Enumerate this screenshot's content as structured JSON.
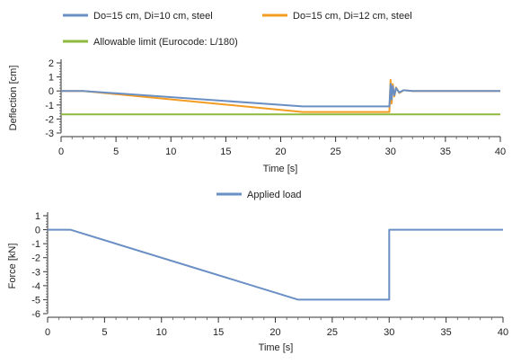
{
  "chart_data": [
    {
      "type": "line",
      "xlabel": "Time [s]",
      "ylabel": "Deflection [cm]",
      "xlim": [
        0,
        40
      ],
      "ylim": [
        -3,
        2
      ],
      "xticks": [
        "0",
        "5",
        "10",
        "15",
        "20",
        "25",
        "30",
        "35",
        "40"
      ],
      "yticks": [
        "2",
        "1",
        "0",
        "-1",
        "-2",
        "-3"
      ],
      "grid": false,
      "legend_position": "top",
      "series": [
        {
          "name": "Do=15 cm, Di=10 cm, steel",
          "color": "#6a8fc4",
          "x": [
            0,
            2,
            22,
            29.9,
            30,
            30.1,
            30.2,
            30.35,
            30.5,
            30.8,
            31.2,
            32,
            40
          ],
          "y": [
            0,
            0,
            -1.1,
            -1.1,
            0.5,
            -0.6,
            0.35,
            -0.3,
            0.2,
            -0.1,
            0.05,
            0,
            0
          ]
        },
        {
          "name": "Do=15 cm, Di=12 cm, steel",
          "color": "#f39c22",
          "x": [
            0,
            2,
            22,
            29.9,
            30,
            30.1,
            30.2,
            30.35,
            30.5,
            30.8,
            31.2,
            32,
            40
          ],
          "y": [
            0,
            0,
            -1.5,
            -1.5,
            0.8,
            -0.9,
            0.5,
            -0.4,
            0.25,
            -0.15,
            0.05,
            0,
            0
          ]
        },
        {
          "name": "Allowable limit (Eurocode: L/180)",
          "color": "#8db93c",
          "x": [
            0,
            40
          ],
          "y": [
            -1.67,
            -1.67
          ]
        }
      ]
    },
    {
      "type": "line",
      "xlabel": "Time [s]",
      "ylabel": "Force [kN]",
      "xlim": [
        0,
        40
      ],
      "ylim": [
        -6,
        1
      ],
      "xticks": [
        "0",
        "5",
        "10",
        "15",
        "20",
        "25",
        "30",
        "35",
        "40"
      ],
      "yticks": [
        "1",
        "0",
        "-1",
        "-2",
        "-3",
        "-4",
        "-5",
        "-6"
      ],
      "grid": false,
      "legend_position": "top",
      "series": [
        {
          "name": "Applied load",
          "color": "#6a8fc4",
          "x": [
            0,
            2,
            22,
            30,
            30,
            40
          ],
          "y": [
            0,
            0,
            -5,
            -5,
            0,
            0
          ]
        }
      ]
    }
  ]
}
